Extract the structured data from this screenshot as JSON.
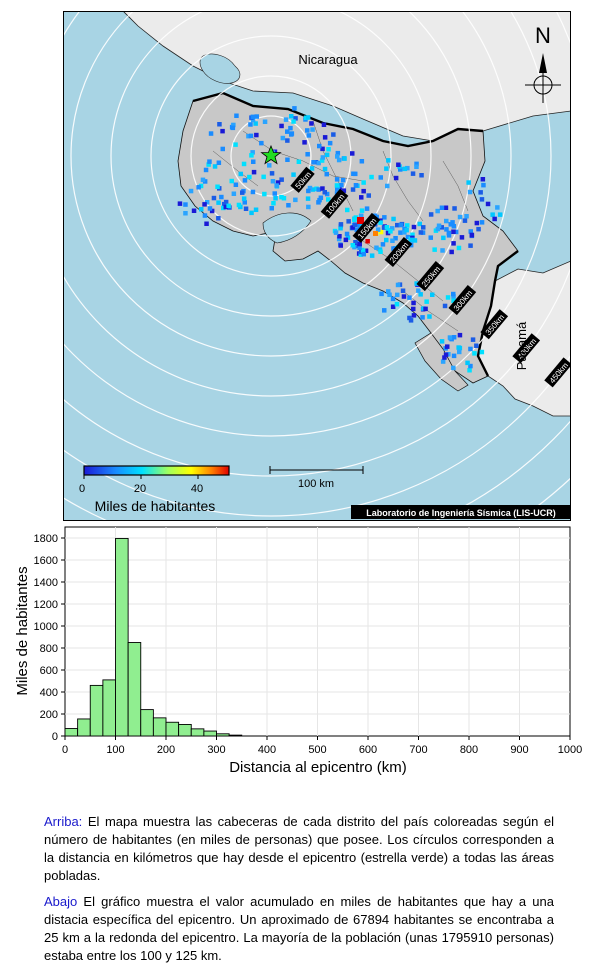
{
  "map": {
    "country_labels": [
      "Nicaragua",
      "Panamá"
    ],
    "north_label": "N",
    "ring_labels": [
      "50km",
      "100km",
      "150km",
      "200km",
      "250km",
      "300km",
      "350km",
      "400km",
      "450km"
    ],
    "colorbar": {
      "ticks": [
        "0",
        "20",
        "40"
      ],
      "title": "Miles de habitantes"
    },
    "scalebar_label": "100 km",
    "credit": "Laboratorio de Ingeniería Sísmica (LIS-UCR)",
    "colors": {
      "ocean": "#a8d4e4",
      "land_cr": "#c8c8c8",
      "land_other": "#ebebeb",
      "epicenter": "#22dd22"
    }
  },
  "chart_data": {
    "type": "bar",
    "xlabel": "Distancia al epicentro (km)",
    "ylabel": "Miles de habitantes",
    "xlim": [
      0,
      1000
    ],
    "ylim": [
      0,
      1900
    ],
    "xticks": [
      0,
      100,
      200,
      300,
      400,
      500,
      600,
      700,
      800,
      900,
      1000
    ],
    "yticks": [
      0,
      200,
      400,
      600,
      800,
      1000,
      1200,
      1400,
      1600,
      1800
    ],
    "bin_width": 25,
    "bin_starts": [
      0,
      25,
      50,
      75,
      100,
      125,
      150,
      175,
      200,
      225,
      250,
      275,
      300,
      325
    ],
    "values": [
      68,
      155,
      460,
      510,
      1796,
      850,
      240,
      165,
      125,
      105,
      65,
      45,
      20,
      8
    ],
    "bar_color": "#90ee90"
  },
  "captions": {
    "top_lead": "Arriba:",
    "top_text": " El mapa muestra las cabeceras de cada distrito del país coloreadas según el número de habitantes (en miles de personas) que posee. Los círculos corresponden a la distancia en kilómetros que hay desde el epicentro (estrella verde) a todas las áreas pobladas.",
    "bottom_lead": "Abajo",
    "bottom_text": " El gráfico muestra el valor acumulado en miles de habitantes que hay a una distacia específica del epicentro. Un aproximado de 67894 habitantes se encontraba a 25 km a la redonda del epicentro. La mayoría de la población (unas 1795910 personas) estaba entre los 100 y 125 km."
  }
}
